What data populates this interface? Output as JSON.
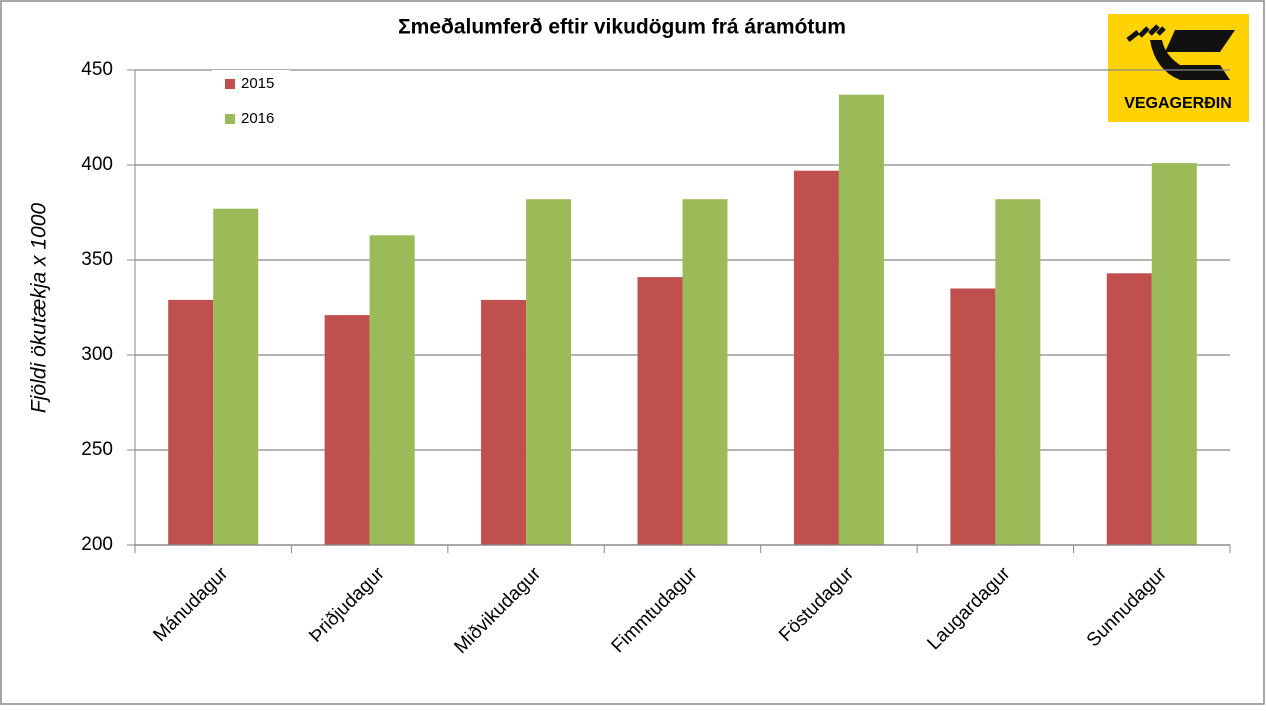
{
  "chart_data": {
    "type": "bar",
    "title": "Σmeðalumferð eftir vikudögum frá áramótum",
    "y_label": "Fjöldi ökutækja x 1000",
    "categories": [
      "Mánudagur",
      "Þriðjudagur",
      "Miðvikudagur",
      "Fimmtudagur",
      "Föstudagur",
      "Laugardagur",
      "Sunnudagur"
    ],
    "series": [
      {
        "name": "2015",
        "color": "#c0504d",
        "values": [
          329,
          321,
          329,
          341,
          397,
          335,
          343
        ]
      },
      {
        "name": "2016",
        "color": "#9bbb59",
        "values": [
          377,
          363,
          382,
          382,
          437,
          382,
          401
        ]
      }
    ],
    "ylim": [
      200,
      450
    ],
    "yticks": [
      200,
      250,
      300,
      350,
      400,
      450
    ],
    "grid": true,
    "legend": "top-left"
  },
  "logo": {
    "text": "VEGAGERÐIN"
  }
}
